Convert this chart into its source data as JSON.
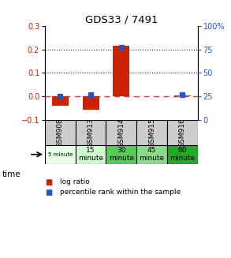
{
  "title": "GDS33 / 7491",
  "samples": [
    "GSM908",
    "GSM913",
    "GSM914",
    "GSM915",
    "GSM916"
  ],
  "time_labels": [
    "5 minute",
    "15\nminute",
    "30\nminute",
    "45\nminute",
    "60\nminute"
  ],
  "time_colors": [
    "#e8ffe8",
    "#ccffcc",
    "#55cc55",
    "#88dd88",
    "#22aa22"
  ],
  "log_ratio": [
    -0.04,
    -0.055,
    0.215,
    0.002,
    0.005
  ],
  "percentile_rank_pct": [
    25,
    27,
    77,
    null,
    27
  ],
  "left_ylim": [
    -0.1,
    0.3
  ],
  "right_ylim": [
    0,
    100
  ],
  "left_yticks": [
    -0.1,
    0.0,
    0.1,
    0.2,
    0.3
  ],
  "right_yticks": [
    0,
    25,
    50,
    75,
    100
  ],
  "bar_color": "#cc2200",
  "dot_color": "#2255cc",
  "zero_line_color": "#cc4444",
  "hline_color": "#222222",
  "bg_color": "#ffffff",
  "gsm_row_color": "#cccccc",
  "legend_bar_label": "log ratio",
  "legend_dot_label": "percentile rank within the sample",
  "time_label": "time"
}
